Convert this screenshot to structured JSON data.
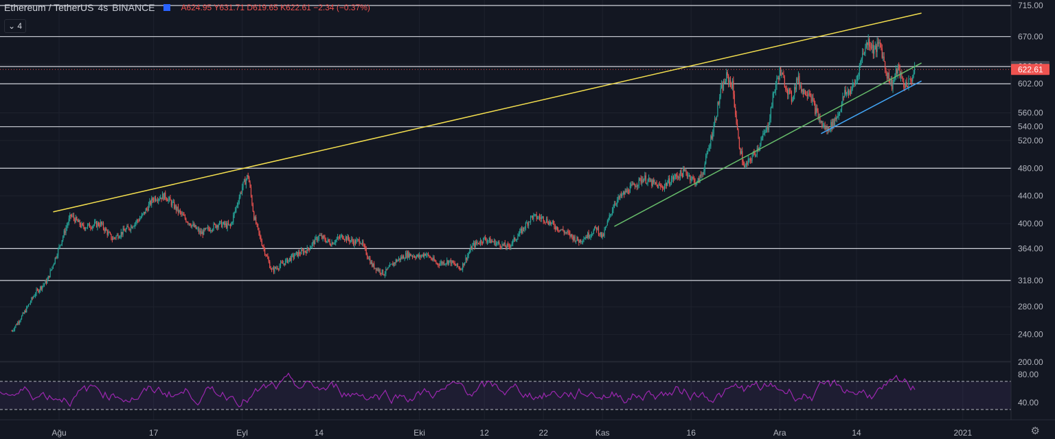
{
  "header": {
    "symbol": "Ethereum / TetherUS",
    "interval": "4s",
    "exchange": "BINANCE",
    "open": "A624.95",
    "high": "Y631.71",
    "low": "D619.65",
    "close": "K622.61",
    "change": "−2.34 (−0.37%)"
  },
  "indicator_toggle": "4",
  "chart_data": {
    "type": "candlestick",
    "price_axis_ticks": [
      "200.00",
      "240.00",
      "280.00",
      "318.00",
      "364.00",
      "400.00",
      "440.00",
      "480.00",
      "520.00",
      "540.00",
      "560.00",
      "602.00",
      "630.00",
      "670.00",
      "715.00"
    ],
    "price_labels": [
      {
        "value": 626.82,
        "text": "626.82",
        "color": "#434651"
      },
      {
        "value": 622.61,
        "text": "622.61",
        "color": "#ef5350"
      }
    ],
    "time_axis_ticks": [
      {
        "label": "Ağu",
        "day": 0
      },
      {
        "label": "17",
        "day": 16
      },
      {
        "label": "Eyl",
        "day": 31
      },
      {
        "label": "14",
        "day": 44
      },
      {
        "label": "Eki",
        "day": 61
      },
      {
        "label": "12",
        "day": 72
      },
      {
        "label": "22",
        "day": 82
      },
      {
        "label": "Kas",
        "day": 92
      },
      {
        "label": "16",
        "day": 107
      },
      {
        "label": "Ara",
        "day": 122
      },
      {
        "label": "14",
        "day": 135
      },
      {
        "label": "2021",
        "day": 153
      }
    ],
    "horizontal_levels": [
      715,
      670,
      626.82,
      602,
      540,
      480,
      364,
      318
    ],
    "trendlines": [
      {
        "color": "#f5e04f",
        "from": [
          -1,
          417
        ],
        "to": [
          146,
          704
        ]
      },
      {
        "color": "#66bb6a",
        "from": [
          94,
          396
        ],
        "to": [
          146,
          632
        ]
      },
      {
        "color": "#42a5f5",
        "from": [
          129,
          530
        ],
        "to": [
          146,
          606
        ]
      }
    ],
    "price_path": [
      [
        -8,
        245
      ],
      [
        -6,
        270
      ],
      [
        -4,
        300
      ],
      [
        -2,
        318
      ],
      [
        1,
        390
      ],
      [
        2,
        412
      ],
      [
        4,
        395
      ],
      [
        7,
        400
      ],
      [
        9,
        378
      ],
      [
        12,
        395
      ],
      [
        14,
        410
      ],
      [
        16,
        437
      ],
      [
        18,
        440
      ],
      [
        21,
        410
      ],
      [
        24,
        386
      ],
      [
        27,
        400
      ],
      [
        29,
        396
      ],
      [
        31,
        453
      ],
      [
        32,
        470
      ],
      [
        33,
        410
      ],
      [
        34,
        380
      ],
      [
        36,
        332
      ],
      [
        38,
        343
      ],
      [
        40,
        355
      ],
      [
        42,
        362
      ],
      [
        44,
        382
      ],
      [
        46,
        372
      ],
      [
        48,
        382
      ],
      [
        50,
        373
      ],
      [
        51,
        376
      ],
      [
        53,
        340
      ],
      [
        55,
        328
      ],
      [
        57,
        346
      ],
      [
        59,
        356
      ],
      [
        61,
        352
      ],
      [
        62,
        357
      ],
      [
        64,
        342
      ],
      [
        66,
        346
      ],
      [
        68,
        335
      ],
      [
        70,
        368
      ],
      [
        72,
        378
      ],
      [
        74,
        372
      ],
      [
        76,
        366
      ],
      [
        78,
        386
      ],
      [
        80,
        410
      ],
      [
        82,
        408
      ],
      [
        84,
        396
      ],
      [
        86,
        386
      ],
      [
        88,
        375
      ],
      [
        90,
        386
      ],
      [
        91,
        394
      ],
      [
        92,
        380
      ],
      [
        94,
        430
      ],
      [
        96,
        446
      ],
      [
        98,
        460
      ],
      [
        99,
        466
      ],
      [
        100,
        460
      ],
      [
        102,
        452
      ],
      [
        104,
        466
      ],
      [
        106,
        475
      ],
      [
        108,
        458
      ],
      [
        109,
        475
      ],
      [
        110,
        510
      ],
      [
        111,
        548
      ],
      [
        112,
        590
      ],
      [
        113,
        612
      ],
      [
        114,
        600
      ],
      [
        115,
        520
      ],
      [
        116,
        480
      ],
      [
        118,
        505
      ],
      [
        120,
        540
      ],
      [
        121,
        590
      ],
      [
        122,
        620
      ],
      [
        123,
        600
      ],
      [
        124,
        580
      ],
      [
        125,
        610
      ],
      [
        126,
        590
      ],
      [
        127,
        592
      ],
      [
        128,
        565
      ],
      [
        129,
        545
      ],
      [
        130,
        535
      ],
      [
        131,
        545
      ],
      [
        132,
        560
      ],
      [
        133,
        588
      ],
      [
        134,
        592
      ],
      [
        135,
        608
      ],
      [
        136,
        645
      ],
      [
        137,
        664
      ],
      [
        138,
        650
      ],
      [
        139,
        660
      ],
      [
        140,
        620
      ],
      [
        141,
        600
      ],
      [
        142,
        625
      ],
      [
        143,
        600
      ],
      [
        144,
        605
      ],
      [
        145,
        622
      ]
    ],
    "rsi": {
      "levels": [
        70,
        30
      ],
      "ticks": [
        "80.00",
        "40.00"
      ],
      "series_color": "#9c27b0"
    }
  }
}
